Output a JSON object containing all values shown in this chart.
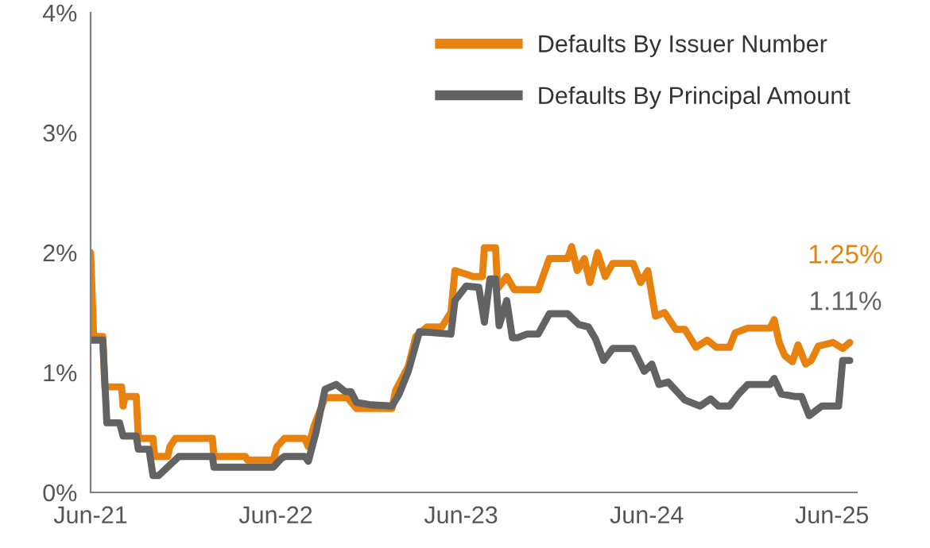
{
  "chart_data": {
    "type": "line",
    "xlim": [
      "2021-06-01",
      "2025-07-20"
    ],
    "xticks": [
      {
        "value": "2021-06-01",
        "label": "Jun-21"
      },
      {
        "value": "2022-06-01",
        "label": "Jun-22"
      },
      {
        "value": "2023-06-01",
        "label": "Jun-23"
      },
      {
        "value": "2024-06-01",
        "label": "Jun-24"
      },
      {
        "value": "2025-06-01",
        "label": "Jun-25"
      }
    ],
    "ylim": [
      0,
      4
    ],
    "yticks": [
      {
        "value": 0,
        "label": "0%"
      },
      {
        "value": 1,
        "label": "1%"
      },
      {
        "value": 2,
        "label": "2%"
      },
      {
        "value": 3,
        "label": "3%"
      },
      {
        "value": 4,
        "label": "4%"
      }
    ],
    "grid": false,
    "legend": "top right",
    "marker": "none",
    "line_style": "solid",
    "series": [
      {
        "name": "Defaults By Issuer Number",
        "color": "#e8820e",
        "x": [
          "2021-06-01",
          "2021-06-07",
          "2021-06-25",
          "2021-06-29",
          "2021-08-01",
          "2021-08-04",
          "2021-08-08",
          "2021-08-30",
          "2021-09-03",
          "2021-10-02",
          "2021-10-05",
          "2021-10-31",
          "2021-11-04",
          "2021-11-15",
          "2022-01-27",
          "2022-01-30",
          "2022-04-02",
          "2022-04-06",
          "2022-05-27",
          "2022-06-03",
          "2022-06-18",
          "2022-07-28",
          "2022-08-04",
          "2022-08-15",
          "2022-09-06",
          "2022-10-20",
          "2022-11-07",
          "2023-01-16",
          "2023-01-23",
          "2023-02-17",
          "2023-03-04",
          "2023-03-26",
          "2023-04-24",
          "2023-05-12",
          "2023-05-20",
          "2023-06-25",
          "2023-07-13",
          "2023-07-17",
          "2023-08-08",
          "2023-08-12",
          "2023-08-30",
          "2023-09-14",
          "2023-10-31",
          "2023-11-22",
          "2023-12-28",
          "2024-01-05",
          "2024-01-16",
          "2024-01-30",
          "2024-02-10",
          "2024-02-25",
          "2024-03-11",
          "2024-03-26",
          "2024-05-05",
          "2024-05-20",
          "2024-06-03",
          "2024-06-18",
          "2024-07-06",
          "2024-07-28",
          "2024-08-15",
          "2024-09-06",
          "2024-09-28",
          "2024-10-16",
          "2024-11-11",
          "2024-11-22",
          "2024-12-17",
          "2025-01-30",
          "2025-02-07",
          "2025-02-17",
          "2025-02-28",
          "2025-03-15",
          "2025-03-26",
          "2025-04-10",
          "2025-04-21",
          "2025-05-05",
          "2025-06-03",
          "2025-06-22",
          "2025-07-06"
        ],
        "values": [
          2.0,
          1.3,
          1.3,
          0.88,
          0.88,
          0.72,
          0.8,
          0.8,
          0.45,
          0.45,
          0.3,
          0.3,
          0.38,
          0.45,
          0.45,
          0.3,
          0.3,
          0.27,
          0.27,
          0.38,
          0.45,
          0.45,
          0.38,
          0.55,
          0.79,
          0.79,
          0.7,
          0.7,
          0.85,
          1.05,
          1.3,
          1.38,
          1.38,
          1.5,
          1.85,
          1.8,
          1.8,
          2.04,
          2.04,
          1.7,
          1.8,
          1.69,
          1.69,
          1.95,
          1.95,
          2.05,
          1.85,
          1.95,
          1.75,
          2.0,
          1.8,
          1.91,
          1.91,
          1.75,
          1.85,
          1.47,
          1.5,
          1.36,
          1.36,
          1.21,
          1.27,
          1.21,
          1.21,
          1.33,
          1.37,
          1.37,
          1.44,
          1.25,
          1.14,
          1.09,
          1.23,
          1.07,
          1.1,
          1.22,
          1.25,
          1.2,
          1.25
        ]
      },
      {
        "name": "Defaults By Principal Amount",
        "color": "#636363",
        "x": [
          "2021-06-01",
          "2021-06-25",
          "2021-07-03",
          "2021-07-28",
          "2021-08-04",
          "2021-08-30",
          "2021-09-03",
          "2021-09-24",
          "2021-10-02",
          "2021-10-13",
          "2021-11-07",
          "2021-11-22",
          "2022-01-27",
          "2022-01-30",
          "2022-05-27",
          "2022-06-11",
          "2022-06-18",
          "2022-07-28",
          "2022-08-04",
          "2022-08-19",
          "2022-09-06",
          "2022-09-28",
          "2022-10-16",
          "2022-10-27",
          "2022-11-07",
          "2022-12-06",
          "2023-01-16",
          "2023-01-30",
          "2023-02-17",
          "2023-03-11",
          "2023-05-12",
          "2023-05-20",
          "2023-06-11",
          "2023-07-06",
          "2023-07-17",
          "2023-07-28",
          "2023-08-08",
          "2023-08-15",
          "2023-08-30",
          "2023-09-10",
          "2023-09-21",
          "2023-10-09",
          "2023-10-31",
          "2023-11-22",
          "2023-12-28",
          "2024-01-19",
          "2024-02-07",
          "2024-02-21",
          "2024-03-08",
          "2024-03-26",
          "2024-05-05",
          "2024-05-27",
          "2024-06-11",
          "2024-06-25",
          "2024-07-13",
          "2024-08-15",
          "2024-09-14",
          "2024-10-05",
          "2024-10-20",
          "2024-11-11",
          "2024-11-29",
          "2024-12-17",
          "2025-01-30",
          "2025-02-07",
          "2025-02-21",
          "2025-03-19",
          "2025-04-02",
          "2025-04-17",
          "2025-05-12",
          "2025-06-14",
          "2025-06-22",
          "2025-07-06"
        ],
        "values": [
          1.27,
          1.27,
          0.58,
          0.58,
          0.47,
          0.47,
          0.36,
          0.36,
          0.14,
          0.14,
          0.24,
          0.3,
          0.3,
          0.21,
          0.21,
          0.28,
          0.3,
          0.3,
          0.26,
          0.5,
          0.86,
          0.9,
          0.84,
          0.84,
          0.75,
          0.73,
          0.72,
          0.82,
          1.01,
          1.34,
          1.32,
          1.6,
          1.72,
          1.71,
          1.42,
          1.78,
          1.78,
          1.39,
          1.6,
          1.29,
          1.29,
          1.32,
          1.32,
          1.49,
          1.49,
          1.4,
          1.38,
          1.28,
          1.1,
          1.2,
          1.2,
          1.01,
          1.07,
          0.9,
          0.92,
          0.77,
          0.72,
          0.78,
          0.72,
          0.72,
          0.82,
          0.9,
          0.9,
          0.95,
          0.82,
          0.8,
          0.8,
          0.64,
          0.72,
          0.72,
          1.1,
          1.1
        ]
      }
    ],
    "annotations": [
      "1.25%",
      "1.11%"
    ]
  }
}
